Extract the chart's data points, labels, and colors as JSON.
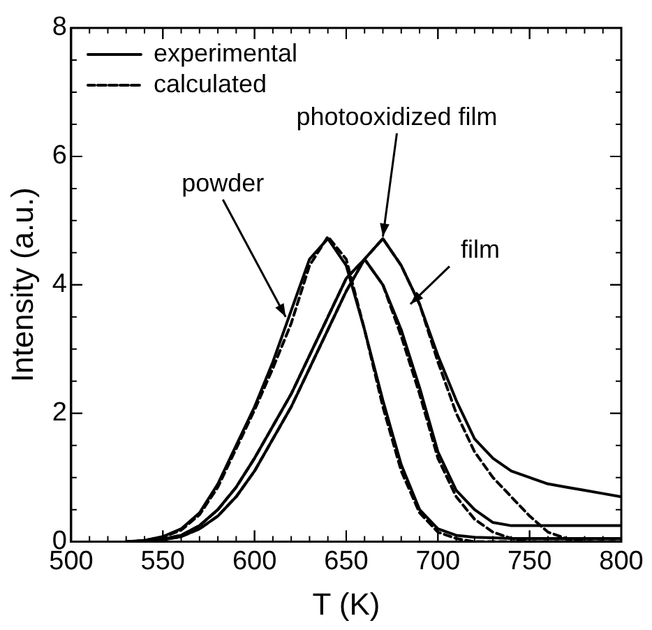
{
  "chart_data": {
    "type": "line",
    "xlabel": "T (K)",
    "ylabel": "Intensity (a.u.)",
    "x": [
      530,
      540,
      550,
      560,
      570,
      580,
      590,
      600,
      610,
      620,
      630,
      640,
      650,
      660,
      670,
      680,
      690,
      700,
      710,
      720,
      730,
      740,
      750,
      760,
      770,
      780,
      790,
      800
    ],
    "series": [
      {
        "name": "experimental",
        "color": "#000000",
        "line_style": "solid",
        "values": [
          0,
          0.02,
          0.08,
          0.2,
          0.45,
          0.9,
          1.5,
          2.1,
          2.8,
          3.6,
          4.4,
          4.72,
          4.3,
          3.3,
          2.2,
          1.2,
          0.5,
          0.2,
          0.1,
          0.07,
          0.06,
          0.05,
          0.05,
          0.05,
          0.05,
          0.05,
          0.05,
          0.05
        ]
      },
      {
        "name": "calculated",
        "color": "#000000",
        "line_style": "dashed",
        "values": [
          0,
          0.02,
          0.07,
          0.18,
          0.42,
          0.85,
          1.45,
          2.05,
          2.7,
          3.4,
          4.3,
          4.75,
          4.4,
          3.3,
          2.1,
          1.1,
          0.45,
          0.15,
          0.05,
          0,
          0,
          0,
          0,
          0,
          0,
          0,
          0,
          0
        ]
      },
      {
        "color": "#000000",
        "line_style": "solid",
        "values": [
          0,
          0.01,
          0.04,
          0.1,
          0.25,
          0.5,
          0.85,
          1.3,
          1.8,
          2.3,
          2.9,
          3.5,
          4.1,
          4.4,
          4.0,
          3.3,
          2.4,
          1.4,
          0.8,
          0.5,
          0.3,
          0.25,
          0.25,
          0.25,
          0.25,
          0.25,
          0.25,
          0.25
        ]
      },
      {
        "color": "#000000",
        "line_style": "dashed",
        "values": [
          0,
          0.01,
          0.04,
          0.1,
          0.25,
          0.5,
          0.85,
          1.3,
          1.8,
          2.3,
          2.9,
          3.5,
          4.1,
          4.4,
          4.0,
          3.2,
          2.3,
          1.3,
          0.7,
          0.35,
          0.15,
          0.05,
          0,
          0,
          0,
          0,
          0,
          0
        ]
      },
      {
        "color": "#000000",
        "line_style": "solid",
        "values": [
          0,
          0.01,
          0.03,
          0.08,
          0.2,
          0.4,
          0.7,
          1.1,
          1.6,
          2.1,
          2.7,
          3.3,
          3.9,
          4.4,
          4.72,
          4.3,
          3.7,
          2.9,
          2.2,
          1.6,
          1.3,
          1.1,
          1.0,
          0.9,
          0.85,
          0.8,
          0.75,
          0.7
        ]
      },
      {
        "color": "#000000",
        "line_style": "dashed",
        "values": [
          0,
          0.01,
          0.03,
          0.08,
          0.2,
          0.4,
          0.7,
          1.1,
          1.6,
          2.1,
          2.7,
          3.3,
          3.9,
          4.4,
          4.72,
          4.3,
          3.7,
          2.8,
          2.0,
          1.4,
          1.0,
          0.7,
          0.4,
          0.15,
          0.05,
          0,
          0,
          0
        ]
      }
    ],
    "xlim": [
      500,
      800
    ],
    "xticks": [
      500,
      550,
      600,
      650,
      700,
      750,
      800
    ],
    "ylim": [
      0,
      8
    ],
    "yticks": [
      0,
      2,
      4,
      6,
      8
    ],
    "grid": false,
    "legend": "top left",
    "marker": "none",
    "annotations": [
      {
        "text": "powder",
        "x": 617,
        "y": 3.5
      },
      {
        "text": "photooxidized film",
        "x": 670,
        "y": 4.75
      },
      {
        "text": "film",
        "x": 685,
        "y": 3.7
      }
    ]
  }
}
